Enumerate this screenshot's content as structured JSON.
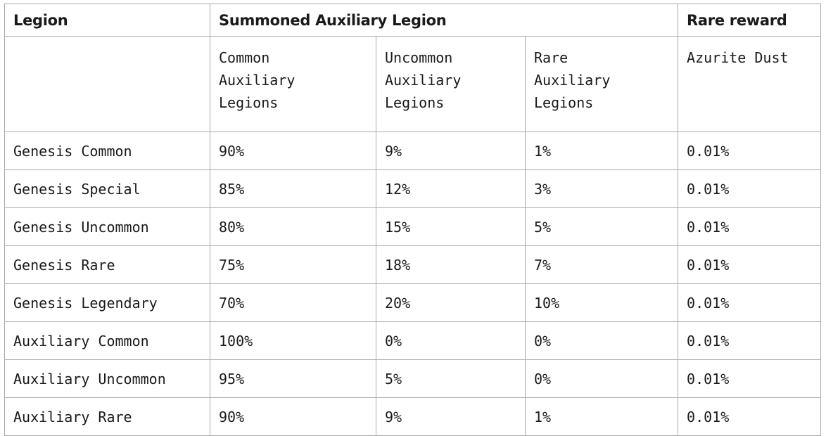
{
  "header": {
    "legion": "Legion",
    "summoned": "Summoned Auxiliary Legion",
    "rare_reward": "Rare reward"
  },
  "subheader": {
    "common": [
      "Common",
      "Auxiliary",
      "Legions"
    ],
    "uncommon": [
      "Uncommon",
      "Auxiliary",
      "Legions"
    ],
    "rare": [
      "Rare",
      "Auxiliary",
      "Legions"
    ],
    "reward": "Azurite Dust"
  },
  "rows": [
    {
      "legion": "Genesis Common",
      "common": "90%",
      "uncommon": "9%",
      "rare": "1%",
      "reward": "0.01%"
    },
    {
      "legion": "Genesis Special",
      "common": "85%",
      "uncommon": "12%",
      "rare": "3%",
      "reward": "0.01%"
    },
    {
      "legion": "Genesis Uncommon",
      "common": "80%",
      "uncommon": "15%",
      "rare": "5%",
      "reward": "0.01%"
    },
    {
      "legion": "Genesis Rare",
      "common": "75%",
      "uncommon": "18%",
      "rare": "7%",
      "reward": "0.01%"
    },
    {
      "legion": "Genesis Legendary",
      "common": "70%",
      "uncommon": "20%",
      "rare": "10%",
      "reward": "0.01%"
    },
    {
      "legion": "Auxiliary Common",
      "common": "100%",
      "uncommon": "0%",
      "rare": "0%",
      "reward": "0.01%"
    },
    {
      "legion": "Auxiliary Uncommon",
      "common": "95%",
      "uncommon": "5%",
      "rare": "0%",
      "reward": "0.01%"
    },
    {
      "legion": "Auxiliary Rare",
      "common": "90%",
      "uncommon": "9%",
      "rare": "1%",
      "reward": "0.01%"
    }
  ]
}
